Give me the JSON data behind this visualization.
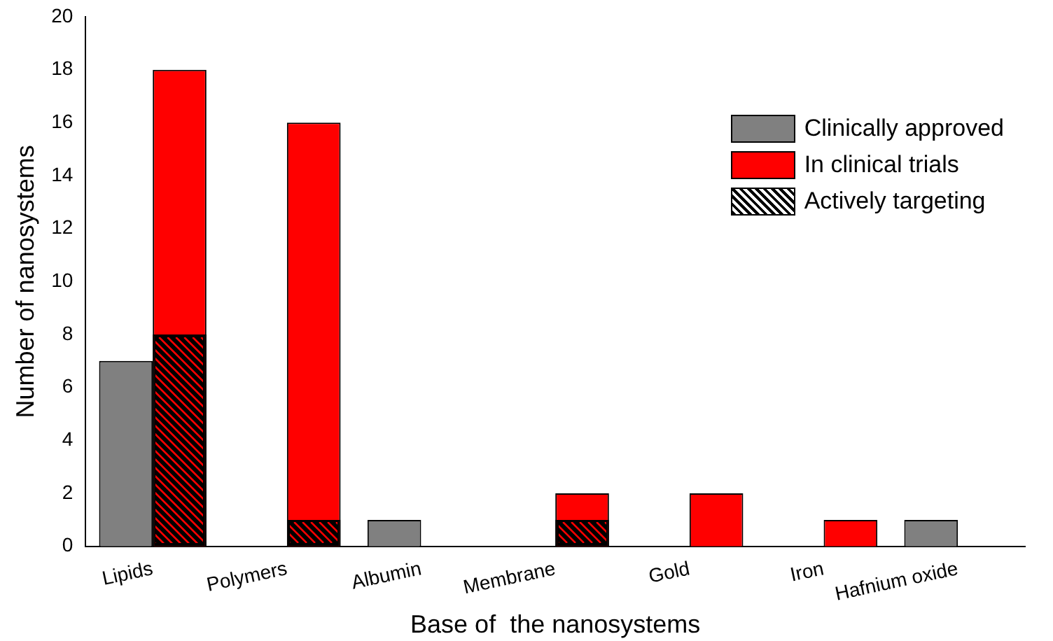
{
  "chart_data": {
    "type": "bar",
    "xlabel": "Base of  the nanosystems",
    "ylabel": "Number of nanosystems",
    "categories": [
      "Lipids",
      "Polymers",
      "Albumin",
      "Membrane",
      "Gold",
      "Iron",
      "Hafnium oxide"
    ],
    "series": [
      {
        "name": "Clinically approved",
        "color": "#808080",
        "values": [
          7,
          null,
          1,
          null,
          null,
          null,
          1
        ]
      },
      {
        "name": "In clinical trials",
        "color": "#ff0000",
        "values": [
          18,
          16,
          null,
          2,
          2,
          1,
          null
        ]
      },
      {
        "name": "Actively targeting",
        "color": "#000000",
        "values": [
          8,
          1,
          null,
          1,
          null,
          null,
          null
        ]
      }
    ],
    "ylim": [
      0,
      20
    ],
    "yticks": [
      0,
      2,
      4,
      6,
      8,
      10,
      12,
      14,
      16,
      18,
      20
    ],
    "grid": false,
    "legend": "top right"
  }
}
